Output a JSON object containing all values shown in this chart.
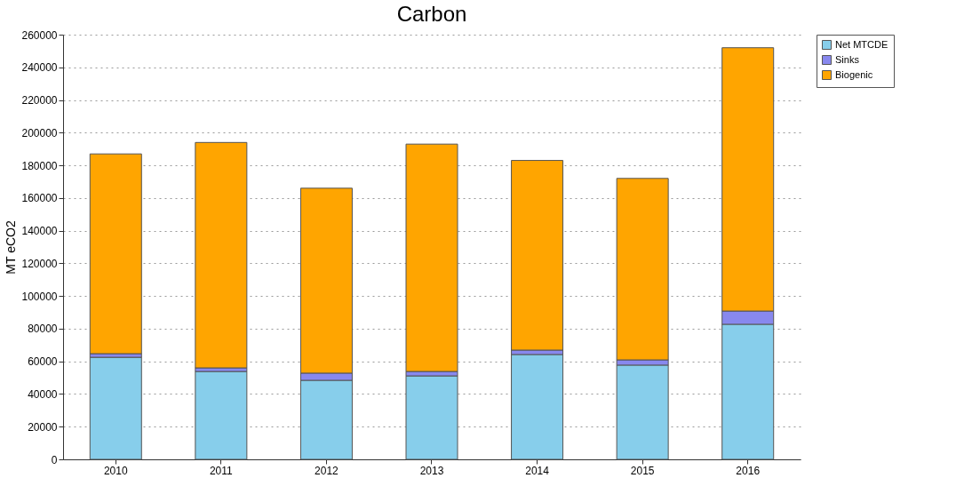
{
  "chart_data": {
    "type": "bar",
    "title": "Carbon",
    "ylabel": "MT eCO2",
    "categories": [
      "2010",
      "2011",
      "2012",
      "2013",
      "2014",
      "2015",
      "2016"
    ],
    "stacked": true,
    "series": [
      {
        "name": "Net MTCDE",
        "color": "#87ceeb",
        "values": [
          62500,
          53800,
          48400,
          51100,
          64200,
          57700,
          82700
        ]
      },
      {
        "name": "Sinks",
        "color": "#8888ee",
        "values": [
          2200,
          2200,
          4400,
          2700,
          2700,
          3200,
          8100
        ]
      },
      {
        "name": "Biogenic",
        "color": "#ffa500",
        "values": [
          122300,
          138000,
          113200,
          139200,
          116100,
          111100,
          161200
        ]
      }
    ],
    "ylim": [
      0,
      260000
    ],
    "yticks": [
      0,
      20000,
      40000,
      60000,
      80000,
      100000,
      120000,
      140000,
      160000,
      180000,
      200000,
      220000,
      240000,
      260000
    ],
    "grid": "y",
    "legend": "top right"
  }
}
